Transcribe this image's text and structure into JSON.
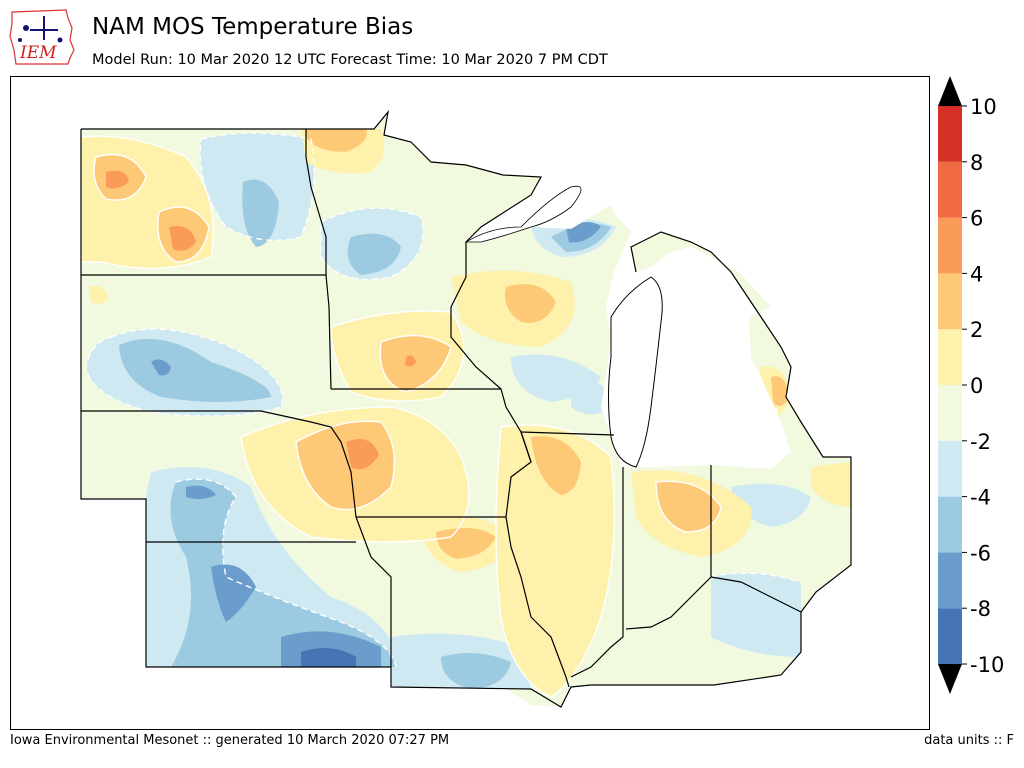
{
  "header": {
    "logo_text": "IEM",
    "title": "NAM MOS Temperature Bias",
    "subtitle": "Model Run: 10 Mar 2020 12 UTC Forecast Time: 10 Mar 2020 7 PM CDT"
  },
  "colorbar": {
    "levels": [
      -10,
      -8,
      -6,
      -4,
      -2,
      0,
      2,
      4,
      6,
      8,
      10
    ],
    "tick_labels": [
      "-10",
      "-8",
      "-6",
      "-4",
      "-2",
      "0",
      "2",
      "4",
      "6",
      "8",
      "10"
    ],
    "colors": [
      "#4575b4",
      "#6a9ccc",
      "#9ccae1",
      "#cfe9f2",
      "#f1f9df",
      "#fef1ac",
      "#fdc977",
      "#fb9b59",
      "#f06a43",
      "#d73027"
    ],
    "under_color": "#000000",
    "over_color": "#000000"
  },
  "footer": {
    "left": "Iowa Environmental Mesonet :: generated 10 March 2020 07:27 PM",
    "right": "data units :: F"
  }
}
